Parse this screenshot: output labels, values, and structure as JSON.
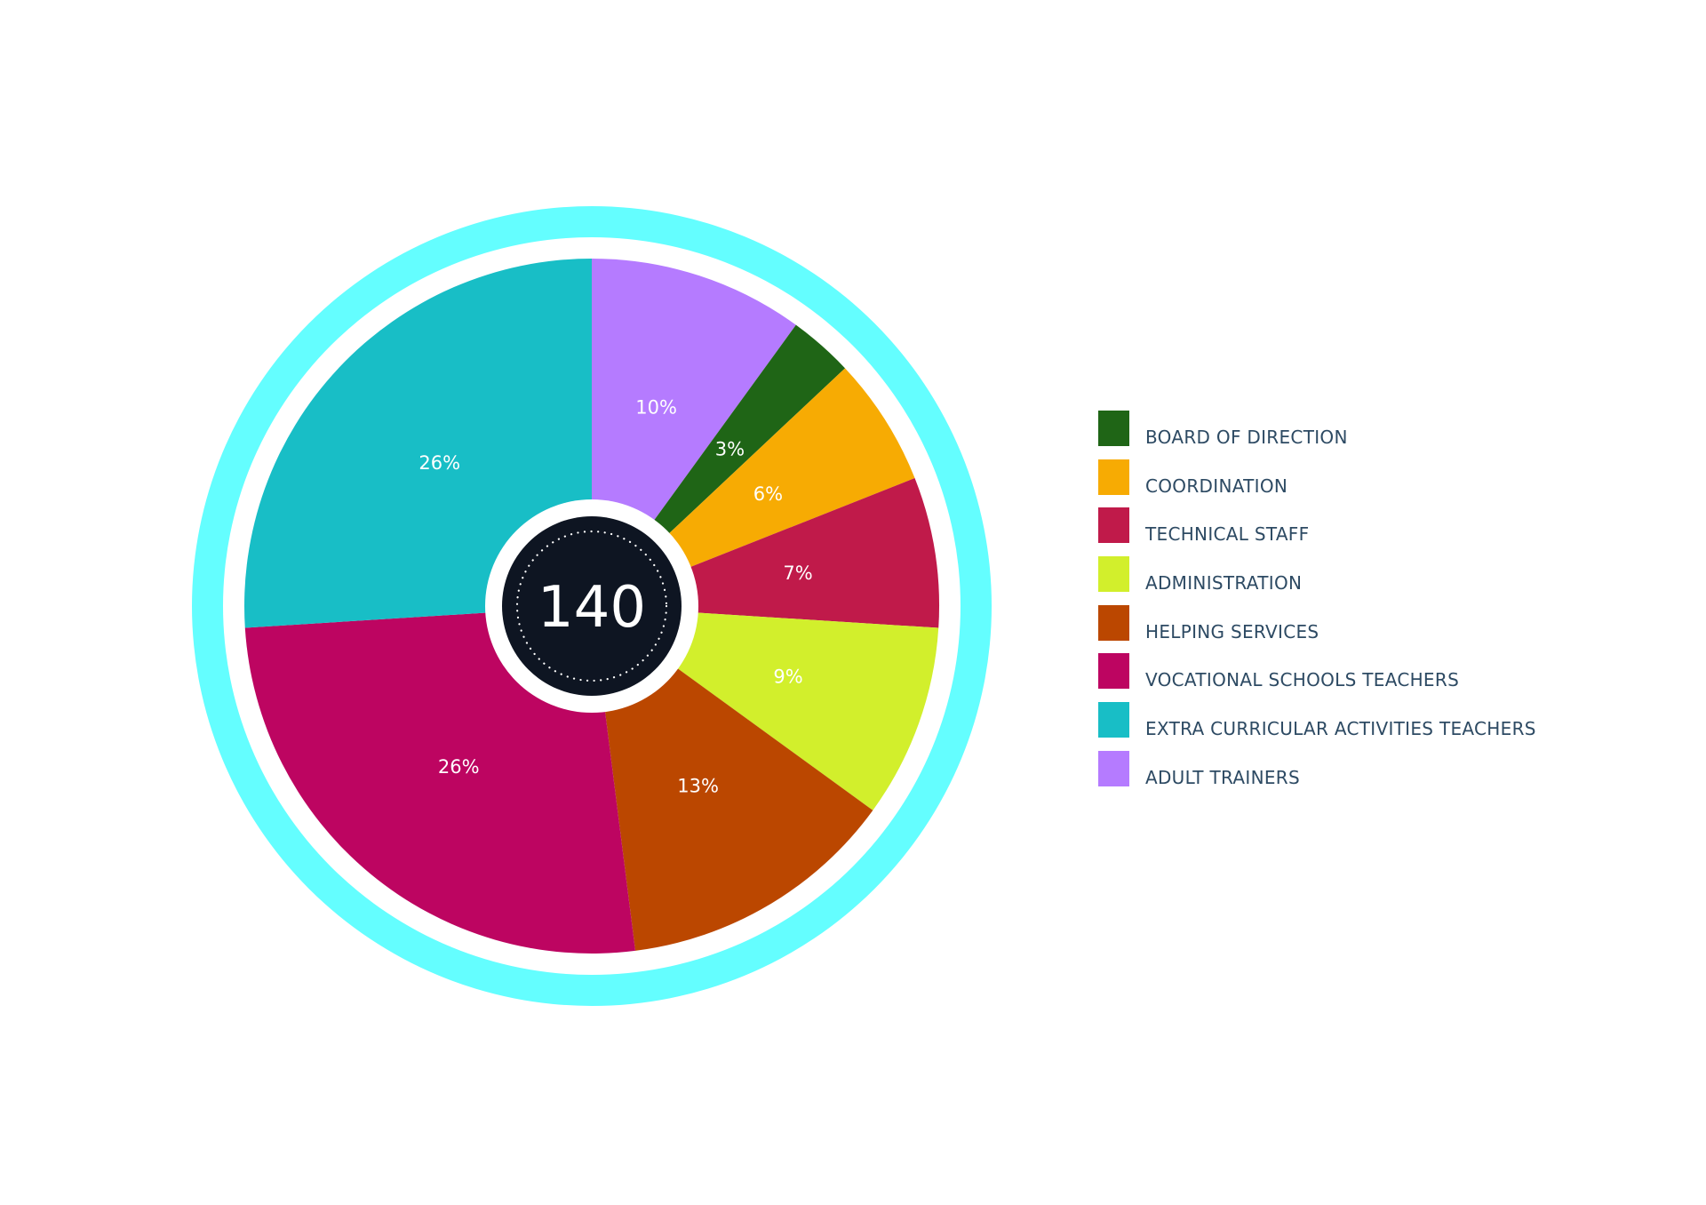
{
  "chart_data": {
    "type": "pie",
    "variant": "donut",
    "center_value": "140",
    "slices": [
      {
        "name": "ADULT TRAINERS",
        "value": 10,
        "label": "10%",
        "color": "#b57bff"
      },
      {
        "name": "BOARD OF DIRECTION",
        "value": 3,
        "label": "3%",
        "color": "#1f6516"
      },
      {
        "name": "COORDINATION",
        "value": 6,
        "label": "6%",
        "color": "#f7ab03"
      },
      {
        "name": "TECHNICAL STAFF",
        "value": 7,
        "label": "7%",
        "color": "#c01a4a"
      },
      {
        "name": "ADMINISTRATION",
        "value": 9,
        "label": "9%",
        "color": "#d2ef2c"
      },
      {
        "name": "HELPING SERVICES",
        "value": 13,
        "label": "13%",
        "color": "#bb4700"
      },
      {
        "name": "VOCATIONAL SCHOOLS TEACHERS",
        "value": 26,
        "label": "26%",
        "color": "#bd0561"
      },
      {
        "name": "EXTRA CURRICULAR ACTIVITIES TEACHERS",
        "value": 26,
        "label": "26%",
        "color": "#18bec6"
      }
    ],
    "legend": [
      {
        "label": "BOARD OF DIRECTION",
        "color": "#1f6516"
      },
      {
        "label": "COORDINATION",
        "color": "#f7ab03"
      },
      {
        "label": "TECHNICAL STAFF",
        "color": "#c01a4a"
      },
      {
        "label": "ADMINISTRATION",
        "color": "#d2ef2c"
      },
      {
        "label": "HELPING SERVICES",
        "color": "#bb4700"
      },
      {
        "label": "VOCATIONAL SCHOOLS TEACHERS",
        "color": "#bd0561"
      },
      {
        "label": "EXTRA CURRICULAR ACTIVITIES TEACHERS",
        "color": "#18bec6"
      },
      {
        "label": "ADULT TRAINERS",
        "color": "#b57bff"
      }
    ],
    "legend_position": "right",
    "outer_ring_color": "#64feff",
    "center_color": "#0e1522"
  }
}
